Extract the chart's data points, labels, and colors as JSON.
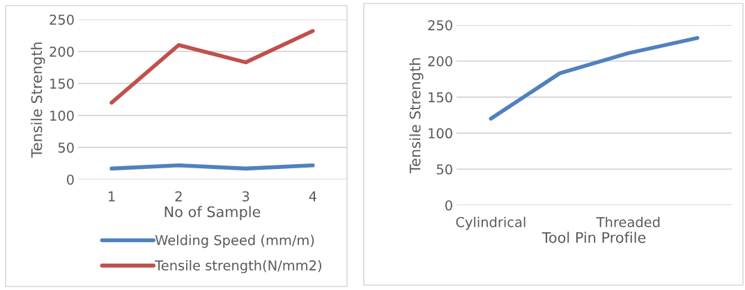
{
  "chart_data": [
    {
      "type": "line",
      "xlabel": "No of Sample",
      "ylabel": "Tensile Strength",
      "categories": [
        "1",
        "2",
        "3",
        "4"
      ],
      "series": [
        {
          "name": "Welding Speed (mm/m)",
          "color": "#4f81bd",
          "values": [
            17,
            22,
            17,
            22
          ]
        },
        {
          "name": "Tensile strength(N/mm2)",
          "color": "#c0504d",
          "values": [
            120,
            210,
            183,
            232
          ]
        }
      ],
      "ylim": [
        0,
        250
      ],
      "yticks": [
        0,
        50,
        100,
        150,
        200,
        250
      ],
      "grid": "y",
      "legend": "bottom",
      "marker": "none",
      "line_style": "solid"
    },
    {
      "type": "line",
      "xlabel": "Tool Pin Profile",
      "ylabel": "Tensile Strength",
      "categories": [
        "Cylindrical",
        null,
        "Threaded",
        null
      ],
      "series": [
        {
          "color": "#4f81bd",
          "values": [
            120,
            183,
            211,
            232
          ]
        }
      ],
      "ylim": [
        0,
        250
      ],
      "yticks": [
        0,
        50,
        100,
        150,
        200,
        250
      ],
      "grid": "y",
      "legend": false,
      "marker": "none",
      "line_style": "solid"
    }
  ]
}
